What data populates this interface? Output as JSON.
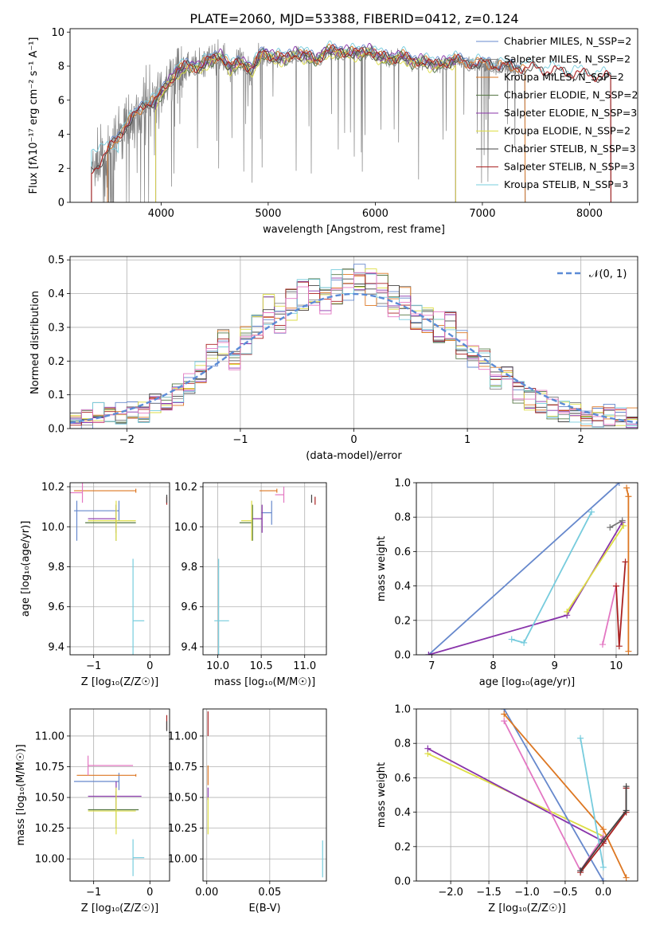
{
  "chart_data": [
    {
      "type": "line",
      "title": "PLATE=2060, MJD=53388, FIBERID=0412, z=0.124",
      "xlabel": "wavelength [Angstrom, rest frame]",
      "ylabel": "Flux [fλ10⁻¹⁷ erg cm⁻² s⁻¹ A⁻¹]",
      "xlim": [
        3150,
        8450
      ],
      "ylim": [
        0,
        10.2
      ],
      "xticks": [
        "4000",
        "5000",
        "6000",
        "7000",
        "8000"
      ],
      "yticks": [
        "0",
        "2",
        "4",
        "6",
        "8",
        "10"
      ],
      "grid": false,
      "legend_position": "upper-right",
      "observed_spectrum": {
        "x": [
          3350,
          3450,
          3550,
          3650,
          3750,
          3850,
          3950,
          4050,
          4150,
          4250,
          4350,
          4450,
          4550,
          4650,
          4750,
          4850,
          4950,
          5050,
          5150,
          5250,
          5350,
          5450,
          5550,
          5650,
          5750,
          5850,
          5950,
          6050,
          6150,
          6250,
          6350,
          6450,
          6550,
          6650,
          6750,
          6850,
          6950,
          7050,
          7150,
          7250,
          7350
        ],
        "y": [
          1.8,
          2.5,
          3.4,
          4.3,
          5.0,
          5.8,
          5.9,
          6.8,
          7.7,
          8.0,
          7.9,
          8.3,
          8.6,
          7.9,
          8.2,
          7.8,
          8.8,
          8.5,
          8.4,
          8.7,
          8.6,
          8.3,
          8.9,
          8.8,
          8.8,
          8.7,
          8.9,
          8.5,
          8.4,
          8.6,
          8.2,
          8.3,
          8.0,
          8.2,
          8.3,
          8.2,
          8.1,
          8.1,
          8.0,
          7.9,
          7.9
        ]
      },
      "series": [
        {
          "name": "Chabrier MILES, N_SSP=2",
          "color": "#6688cc",
          "x_range": [
            3500,
            7400
          ]
        },
        {
          "name": "Salpeter MILES, N_SSP=2",
          "color": "#888888",
          "x_range": [
            3500,
            7400
          ]
        },
        {
          "name": "Kroupa MILES, N_SSP=2",
          "color": "#dd7722",
          "x_range": [
            3500,
            7400
          ]
        },
        {
          "name": "Chabrier ELODIE, N_SSP=2",
          "color": "#557744",
          "x_range": [
            3950,
            6750
          ]
        },
        {
          "name": "Salpeter ELODIE, N_SSP=3",
          "color": "#8833aa",
          "x_range": [
            3950,
            6750
          ]
        },
        {
          "name": "Kroupa ELODIE, N_SSP=2",
          "color": "#dddd44",
          "x_range": [
            3950,
            6750
          ]
        },
        {
          "name": "Chabrier STELIB, N_SSP=3",
          "color": "#444444",
          "x_range": [
            3350,
            8200
          ]
        },
        {
          "name": "Salpeter STELIB, N_SSP=3",
          "color": "#aa2222",
          "x_range": [
            3350,
            8200
          ]
        },
        {
          "name": "Kroupa STELIB, N_SSP=3",
          "color": "#77ccdd",
          "x_range": [
            3350,
            8200
          ]
        }
      ]
    },
    {
      "type": "bar",
      "xlabel": "(data-model)/error",
      "ylabel": "Normed distribution",
      "xlim": [
        -2.5,
        2.5
      ],
      "ylim": [
        0,
        0.51
      ],
      "xticks": [
        "−2",
        "−1",
        "0",
        "1",
        "2"
      ],
      "yticks": [
        "0.0",
        "0.1",
        "0.2",
        "0.3",
        "0.4",
        "0.5"
      ],
      "grid": true,
      "legend_position": "upper-right",
      "reference_curve": {
        "name": "𝒩(0, 1)",
        "color": "#5b8bd6",
        "style": "dashed"
      },
      "bin_width": 0.1,
      "bin_start": -2.5,
      "histogram_values": [
        0.02,
        0.025,
        0.045,
        0.05,
        0.045,
        0.055,
        0.05,
        0.08,
        0.09,
        0.1,
        0.13,
        0.16,
        0.22,
        0.26,
        0.2,
        0.26,
        0.3,
        0.35,
        0.33,
        0.37,
        0.4,
        0.41,
        0.38,
        0.42,
        0.43,
        0.44,
        0.42,
        0.41,
        0.38,
        0.37,
        0.32,
        0.33,
        0.3,
        0.3,
        0.25,
        0.21,
        0.2,
        0.15,
        0.16,
        0.11,
        0.09,
        0.08,
        0.06,
        0.05,
        0.05,
        0.04,
        0.035,
        0.04,
        0.03,
        0.035
      ]
    },
    {
      "type": "scatter",
      "xlabel": "Z [log₁₀(Z/Z☉)]",
      "ylabel": "age  [log₁₀(age/yr)]",
      "xlim": [
        -1.42,
        0.35
      ],
      "ylim": [
        9.36,
        10.22
      ],
      "xticks": [
        "−1",
        "0"
      ],
      "yticks": [
        "9.4",
        "9.6",
        "9.8",
        "10.0",
        "10.2"
      ],
      "grid": true,
      "points": [
        {
          "color": "#6688cc",
          "x": -0.55,
          "xerr": [
            0.8,
            0.0
          ],
          "y": 10.08,
          "yerr": 0.05
        },
        {
          "color": "#6688cc",
          "x": -1.3,
          "xerr": [
            0.0,
            0.0
          ],
          "y": 10.03,
          "yerr": 0.1
        },
        {
          "color": "#dd7722",
          "x": -0.25,
          "xerr": [
            1.1,
            0.0
          ],
          "y": 10.18,
          "yerr": 0.01
        },
        {
          "color": "#e377c2",
          "x": -1.2,
          "xerr": [
            0.95,
            0.0
          ],
          "y": 10.17,
          "yerr": 0.05
        },
        {
          "color": "#8833aa",
          "x": -0.6,
          "xerr": [
            0.5,
            0.0
          ],
          "y": 10.04,
          "yerr": 0.07
        },
        {
          "color": "#557744",
          "x": -0.6,
          "xerr": [
            0.55,
            0.35
          ],
          "y": 10.02,
          "yerr": 0.09
        },
        {
          "color": "#dddd44",
          "x": -0.6,
          "xerr": [
            0.5,
            0.35
          ],
          "y": 10.03,
          "yerr": 0.1
        },
        {
          "color": "#aa2222",
          "x": 0.3,
          "xerr": [
            0.0,
            0.0
          ],
          "y": 10.13,
          "yerr": 0.02
        },
        {
          "color": "#444444",
          "x": 0.3,
          "xerr": [
            0.0,
            0.0
          ],
          "y": 10.14,
          "yerr": 0.02
        },
        {
          "color": "#77ccdd",
          "x": -0.3,
          "xerr": [
            0.0,
            0.2
          ],
          "y": 9.53,
          "yerr": 0.31
        }
      ]
    },
    {
      "type": "scatter",
      "xlabel": "mass [log₁₀(M/M☉)]",
      "xlim": [
        9.83,
        11.25
      ],
      "ylim": [
        9.36,
        10.22
      ],
      "xticks": [
        "10.0",
        "10.5",
        "11.0"
      ],
      "yticks": [
        "9.4",
        "9.6",
        "9.8",
        "10.0",
        "10.2"
      ],
      "grid": true,
      "points": [
        {
          "color": "#6688cc",
          "x": 10.62,
          "xerr": [
            0.12,
            0.0
          ],
          "y": 10.07,
          "yerr": 0.06
        },
        {
          "color": "#dd7722",
          "x": 10.68,
          "xerr": [
            0.2,
            0.0
          ],
          "y": 10.18,
          "yerr": 0.01
        },
        {
          "color": "#e377c2",
          "x": 10.76,
          "xerr": [
            0.1,
            0.0
          ],
          "y": 10.16,
          "yerr": 0.04
        },
        {
          "color": "#8833aa",
          "x": 10.51,
          "xerr": [
            0.12,
            0.0
          ],
          "y": 10.04,
          "yerr": 0.07
        },
        {
          "color": "#557744",
          "x": 10.4,
          "xerr": [
            0.15,
            0.0
          ],
          "y": 10.02,
          "yerr": 0.09
        },
        {
          "color": "#dddd44",
          "x": 10.39,
          "xerr": [
            0.12,
            0.0
          ],
          "y": 10.03,
          "yerr": 0.1
        },
        {
          "color": "#aa2222",
          "x": 11.12,
          "xerr": [
            0.0,
            0.0
          ],
          "y": 10.13,
          "yerr": 0.02
        },
        {
          "color": "#444444",
          "x": 11.08,
          "xerr": [
            0.0,
            0.0
          ],
          "y": 10.14,
          "yerr": 0.02
        },
        {
          "color": "#77ccdd",
          "x": 10.01,
          "xerr": [
            0.05,
            0.12
          ],
          "y": 9.53,
          "yerr": 0.31
        }
      ]
    },
    {
      "type": "line",
      "xlabel": "age  [log₁₀(age/yr)]",
      "ylabel": "mass weight",
      "xlim": [
        6.75,
        10.35
      ],
      "ylim": [
        0,
        1.0
      ],
      "xticks": [
        "7",
        "8",
        "9",
        "10"
      ],
      "yticks": [
        "0.0",
        "0.2",
        "0.4",
        "0.6",
        "0.8",
        "1.0"
      ],
      "grid": true,
      "series": [
        {
          "color": "#6688cc",
          "x": [
            6.95,
            10.05
          ],
          "y": [
            0.0,
            1.0
          ]
        },
        {
          "color": "#8833aa",
          "x": [
            6.95,
            9.2,
            10.1
          ],
          "y": [
            0.0,
            0.23,
            0.77
          ]
        },
        {
          "color": "#dddd44",
          "x": [
            9.2,
            10.12
          ],
          "y": [
            0.25,
            0.75
          ]
        },
        {
          "color": "#777777",
          "x": [
            9.9,
            10.1
          ],
          "y": [
            0.74,
            0.78
          ]
        },
        {
          "color": "#77ccdd",
          "x": [
            8.3,
            8.5,
            9.6
          ],
          "y": [
            0.09,
            0.07,
            0.83
          ]
        },
        {
          "color": "#e377c2",
          "x": [
            9.78,
            10.0
          ],
          "y": [
            0.06,
            0.4
          ]
        },
        {
          "color": "#aa2222",
          "x": [
            10.0,
            10.05,
            10.15
          ],
          "y": [
            0.4,
            0.05,
            0.54
          ]
        },
        {
          "color": "#dd7722",
          "x": [
            10.17,
            10.2,
            10.2
          ],
          "y": [
            0.97,
            0.92,
            0.02
          ]
        }
      ]
    },
    {
      "type": "scatter",
      "xlabel": "Z [log₁₀(Z/Z☉)]",
      "ylabel": "mass [log₁₀(M/M☉)]",
      "xlim": [
        -1.42,
        0.35
      ],
      "ylim": [
        9.82,
        11.22
      ],
      "xticks": [
        "−1",
        "0"
      ],
      "yticks": [
        "10.00",
        "10.25",
        "10.50",
        "10.75",
        "11.00"
      ],
      "grid": true,
      "points": [
        {
          "color": "#6688cc",
          "x": -0.55,
          "xerr": [
            0.8,
            0.0
          ],
          "y": 10.63,
          "yerr": 0.07
        },
        {
          "color": "#dd7722",
          "x": -0.25,
          "xerr": [
            1.05,
            0.0
          ],
          "y": 10.68,
          "yerr": 0.01
        },
        {
          "color": "#e377c2",
          "x": -1.1,
          "xerr": [
            0.0,
            0.8
          ],
          "y": 10.76,
          "yerr": 0.08
        },
        {
          "color": "#8833aa",
          "x": -0.6,
          "xerr": [
            0.5,
            0.45
          ],
          "y": 10.51,
          "yerr": 0.12
        },
        {
          "color": "#557744",
          "x": -0.6,
          "xerr": [
            0.5,
            0.4
          ],
          "y": 10.4,
          "yerr": 0.15
        },
        {
          "color": "#dddd44",
          "x": -0.6,
          "xerr": [
            0.5,
            0.35
          ],
          "y": 10.39,
          "yerr": 0.19
        },
        {
          "color": "#aa2222",
          "x": 0.3,
          "xerr": [
            0.0,
            0.0
          ],
          "y": 11.11,
          "yerr": 0.06
        },
        {
          "color": "#444444",
          "x": 0.3,
          "xerr": [
            0.0,
            0.0
          ],
          "y": 11.08,
          "yerr": 0.04
        },
        {
          "color": "#77ccdd",
          "x": -0.3,
          "xerr": [
            0.0,
            0.2
          ],
          "y": 10.01,
          "yerr": 0.15
        }
      ]
    },
    {
      "type": "scatter",
      "xlabel": "E(B-V)",
      "xlim": [
        -0.003,
        0.095
      ],
      "ylim": [
        9.82,
        11.22
      ],
      "xticks": [
        "0.00",
        "0.05"
      ],
      "yticks": [
        "10.00",
        "10.25",
        "10.50",
        "10.75",
        "11.00"
      ],
      "grid": true,
      "points": [
        {
          "color": "#aa2222",
          "x": 0.001,
          "y": 11.1,
          "yerr": 0.1
        },
        {
          "color": "#dd7722",
          "x": 0.001,
          "y": 10.68,
          "yerr": 0.08
        },
        {
          "color": "#8833aa",
          "x": 0.001,
          "y": 10.53,
          "yerr": 0.05
        },
        {
          "color": "#dddd44",
          "x": 0.001,
          "y": 10.35,
          "yerr": 0.15
        },
        {
          "color": "#77ccdd",
          "x": 0.092,
          "y": 10.0,
          "yerr": 0.15
        }
      ]
    },
    {
      "type": "line",
      "xlabel": "Z [log₁₀(Z/Z☉)]",
      "ylabel": "mass weight",
      "xlim": [
        -2.45,
        0.45
      ],
      "ylim": [
        0,
        1.0
      ],
      "xticks": [
        "−2.0",
        "−1.5",
        "−1.0",
        "−0.5",
        "0.0"
      ],
      "yticks": [
        "0.0",
        "0.2",
        "0.4",
        "0.6",
        "0.8",
        "1.0"
      ],
      "grid": true,
      "series": [
        {
          "color": "#dddd44",
          "x": [
            -2.3,
            0.0
          ],
          "y": [
            0.74,
            0.26
          ]
        },
        {
          "color": "#8833aa",
          "x": [
            -2.3,
            0.0
          ],
          "y": [
            0.77,
            0.23
          ]
        },
        {
          "color": "#6688cc",
          "x": [
            -1.3,
            0.0
          ],
          "y": [
            1.0,
            0.0
          ]
        },
        {
          "color": "#dd7722",
          "x": [
            -1.3,
            0.0,
            0.3
          ],
          "y": [
            0.97,
            0.3,
            0.02
          ]
        },
        {
          "color": "#e377c2",
          "x": [
            -1.3,
            -0.3,
            0.0
          ],
          "y": [
            0.93,
            0.06,
            0.26
          ]
        },
        {
          "color": "#77ccdd",
          "x": [
            -0.3,
            0.0
          ],
          "y": [
            0.83,
            0.08
          ]
        },
        {
          "color": "#aa2222",
          "x": [
            -0.3,
            0.0,
            0.3,
            0.3
          ],
          "y": [
            0.05,
            0.22,
            0.4,
            0.54
          ]
        },
        {
          "color": "#444444",
          "x": [
            -0.3,
            0.0,
            0.3,
            0.3
          ],
          "y": [
            0.06,
            0.24,
            0.41,
            0.55
          ]
        }
      ]
    }
  ]
}
